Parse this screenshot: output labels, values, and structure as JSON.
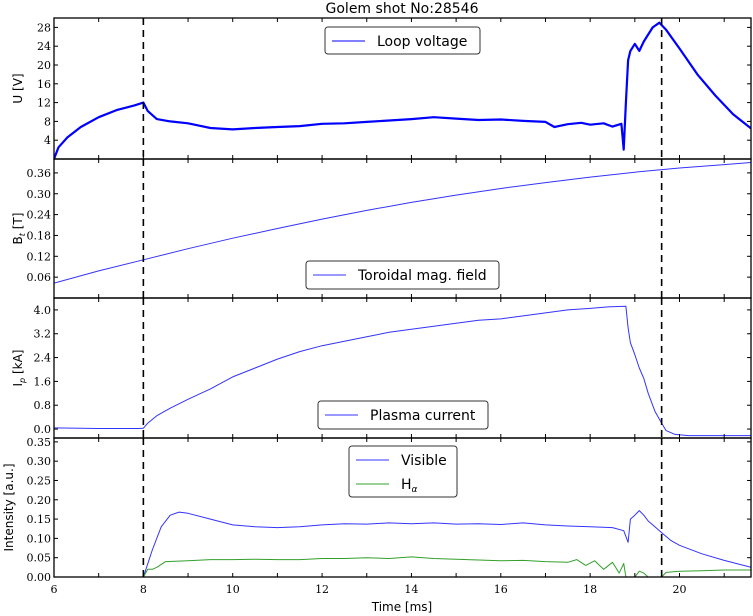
{
  "figure": {
    "title": "Golem shot No:28546",
    "xlabel": "Time [ms]",
    "xlim": [
      6,
      21.6
    ],
    "xticks": [
      6,
      8,
      10,
      12,
      14,
      16,
      18,
      20
    ],
    "vlines": [
      8.0,
      19.6
    ],
    "colors": {
      "blue": "#0000ff",
      "blue_thin": "#3333ff",
      "green": "#33a02c",
      "frame": "#000000"
    }
  },
  "chart_data": [
    {
      "type": "line",
      "panel": "loop-voltage",
      "ylabel": "U [V]",
      "ylim": [
        0,
        30
      ],
      "yticks": [
        4,
        8,
        12,
        16,
        20,
        24,
        28
      ],
      "legend": [
        "Loop voltage"
      ],
      "legend_position": "upper center",
      "series": [
        {
          "name": "Loop voltage",
          "color": "#0000ff",
          "width": 2.2,
          "x": [
            6.0,
            6.1,
            6.3,
            6.6,
            7.0,
            7.4,
            7.8,
            8.0,
            8.1,
            8.3,
            8.6,
            9.0,
            9.5,
            10.0,
            10.5,
            11.0,
            11.5,
            12.0,
            12.5,
            13.0,
            13.5,
            14.0,
            14.5,
            15.0,
            15.5,
            16.0,
            16.5,
            17.0,
            17.2,
            17.5,
            17.8,
            18.0,
            18.3,
            18.5,
            18.7,
            18.75,
            18.8,
            18.85,
            18.9,
            19.0,
            19.1,
            19.2,
            19.3,
            19.4,
            19.55,
            19.7,
            20.0,
            20.4,
            20.8,
            21.2,
            21.6
          ],
          "y": [
            0,
            2.5,
            4.6,
            6.8,
            8.9,
            10.4,
            11.4,
            12.0,
            10.2,
            8.5,
            8.0,
            7.6,
            6.6,
            6.3,
            6.6,
            6.8,
            7.0,
            7.5,
            7.6,
            7.9,
            8.2,
            8.5,
            8.9,
            8.6,
            8.3,
            8.4,
            8.1,
            7.9,
            6.8,
            7.4,
            7.7,
            7.3,
            7.6,
            6.9,
            7.5,
            2.0,
            12.0,
            21.0,
            23.0,
            24.5,
            23.0,
            25.0,
            26.5,
            28.0,
            29.0,
            27.5,
            23.5,
            18.0,
            13.5,
            9.5,
            6.5
          ]
        }
      ]
    },
    {
      "type": "line",
      "panel": "toroidal-field",
      "ylabel": "Bt [T]",
      "ylim": [
        0,
        0.4
      ],
      "yticks": [
        0.06,
        0.12,
        0.18,
        0.24,
        0.3,
        0.36
      ],
      "legend": [
        "Toroidal mag. field"
      ],
      "legend_position": "lower center",
      "series": [
        {
          "name": "Toroidal mag. field",
          "color": "#3333ff",
          "width": 1,
          "x": [
            6,
            7,
            8,
            9,
            10,
            11,
            12,
            13,
            14,
            15,
            16,
            17,
            18,
            19,
            20,
            21,
            21.6
          ],
          "y": [
            0.043,
            0.078,
            0.11,
            0.142,
            0.172,
            0.2,
            0.227,
            0.252,
            0.275,
            0.296,
            0.315,
            0.332,
            0.348,
            0.362,
            0.374,
            0.384,
            0.39
          ]
        }
      ]
    },
    {
      "type": "line",
      "panel": "plasma-current",
      "ylabel": "Ip [kA]",
      "ylim": [
        -0.3,
        4.4
      ],
      "yticks": [
        0.0,
        0.8,
        1.6,
        2.4,
        3.2,
        4.0
      ],
      "legend": [
        "Plasma current"
      ],
      "legend_position": "lower center",
      "series": [
        {
          "name": "Plasma current",
          "color": "#3333ff",
          "width": 1,
          "x": [
            6.0,
            7.0,
            7.9,
            8.0,
            8.1,
            8.3,
            8.6,
            9.0,
            9.5,
            10.0,
            10.5,
            11.0,
            11.5,
            12.0,
            12.5,
            13.0,
            13.5,
            14.0,
            14.5,
            15.0,
            15.5,
            16.0,
            16.5,
            17.0,
            17.5,
            18.0,
            18.4,
            18.8,
            18.85,
            18.9,
            19.0,
            19.1,
            19.2,
            19.3,
            19.45,
            19.6,
            19.7,
            19.9,
            20.2,
            21.0,
            21.6
          ],
          "y": [
            0.04,
            0.02,
            0.02,
            0.03,
            0.2,
            0.45,
            0.7,
            1.0,
            1.35,
            1.75,
            2.05,
            2.35,
            2.6,
            2.8,
            2.95,
            3.1,
            3.25,
            3.35,
            3.45,
            3.55,
            3.65,
            3.7,
            3.8,
            3.9,
            4.0,
            4.05,
            4.1,
            4.12,
            3.4,
            2.9,
            2.5,
            2.05,
            1.7,
            1.2,
            0.6,
            0.2,
            -0.05,
            -0.18,
            -0.22,
            -0.22,
            -0.22
          ]
        }
      ]
    },
    {
      "type": "line",
      "panel": "intensity",
      "ylabel": "Intensity [a.u.]",
      "ylim": [
        0,
        0.36
      ],
      "yticks": [
        0.0,
        0.05,
        0.1,
        0.15,
        0.2,
        0.25,
        0.3,
        0.35
      ],
      "legend": [
        "Visible",
        "Hα"
      ],
      "legend_position": "upper center",
      "series": [
        {
          "name": "Visible",
          "color": "#3333ff",
          "width": 1,
          "x": [
            8.0,
            8.2,
            8.4,
            8.6,
            8.8,
            9.0,
            9.5,
            10.0,
            10.5,
            11.0,
            11.5,
            12.0,
            12.5,
            13.0,
            13.5,
            14.0,
            14.5,
            15.0,
            15.5,
            16.0,
            16.5,
            17.0,
            17.5,
            18.0,
            18.5,
            18.75,
            18.85,
            18.9,
            19.0,
            19.1,
            19.2,
            19.3,
            19.45,
            19.6,
            19.8,
            20.0,
            20.5,
            21.0,
            21.6
          ],
          "y": [
            0.0,
            0.07,
            0.13,
            0.16,
            0.168,
            0.165,
            0.15,
            0.135,
            0.13,
            0.128,
            0.13,
            0.135,
            0.138,
            0.137,
            0.14,
            0.138,
            0.14,
            0.137,
            0.138,
            0.136,
            0.14,
            0.135,
            0.132,
            0.13,
            0.128,
            0.12,
            0.09,
            0.15,
            0.16,
            0.172,
            0.16,
            0.145,
            0.13,
            0.115,
            0.095,
            0.082,
            0.06,
            0.043,
            0.025
          ]
        },
        {
          "name": "Hα",
          "color": "#33a02c",
          "width": 1,
          "x": [
            8.0,
            8.1,
            8.2,
            8.3,
            8.5,
            9.0,
            9.5,
            10.0,
            10.5,
            11.0,
            11.5,
            12.0,
            12.5,
            13.0,
            13.5,
            14.0,
            14.5,
            15.0,
            15.5,
            16.0,
            16.5,
            17.0,
            17.5,
            17.7,
            17.9,
            18.1,
            18.3,
            18.5,
            18.65,
            18.75,
            18.8,
            18.9,
            19.0,
            19.1,
            19.2,
            19.3,
            19.6,
            19.7,
            20.0,
            20.5,
            21.0,
            21.6
          ],
          "y": [
            0.0,
            0.02,
            0.02,
            0.025,
            0.04,
            0.042,
            0.045,
            0.045,
            0.046,
            0.045,
            0.045,
            0.048,
            0.048,
            0.05,
            0.048,
            0.052,
            0.048,
            0.046,
            0.044,
            0.042,
            0.043,
            0.04,
            0.038,
            0.045,
            0.03,
            0.042,
            0.02,
            0.038,
            0.01,
            0.035,
            0.0,
            0.0,
            0.0,
            0.015,
            0.01,
            0.0,
            0.0,
            0.012,
            0.015,
            0.016,
            0.018,
            0.018
          ]
        }
      ]
    }
  ]
}
